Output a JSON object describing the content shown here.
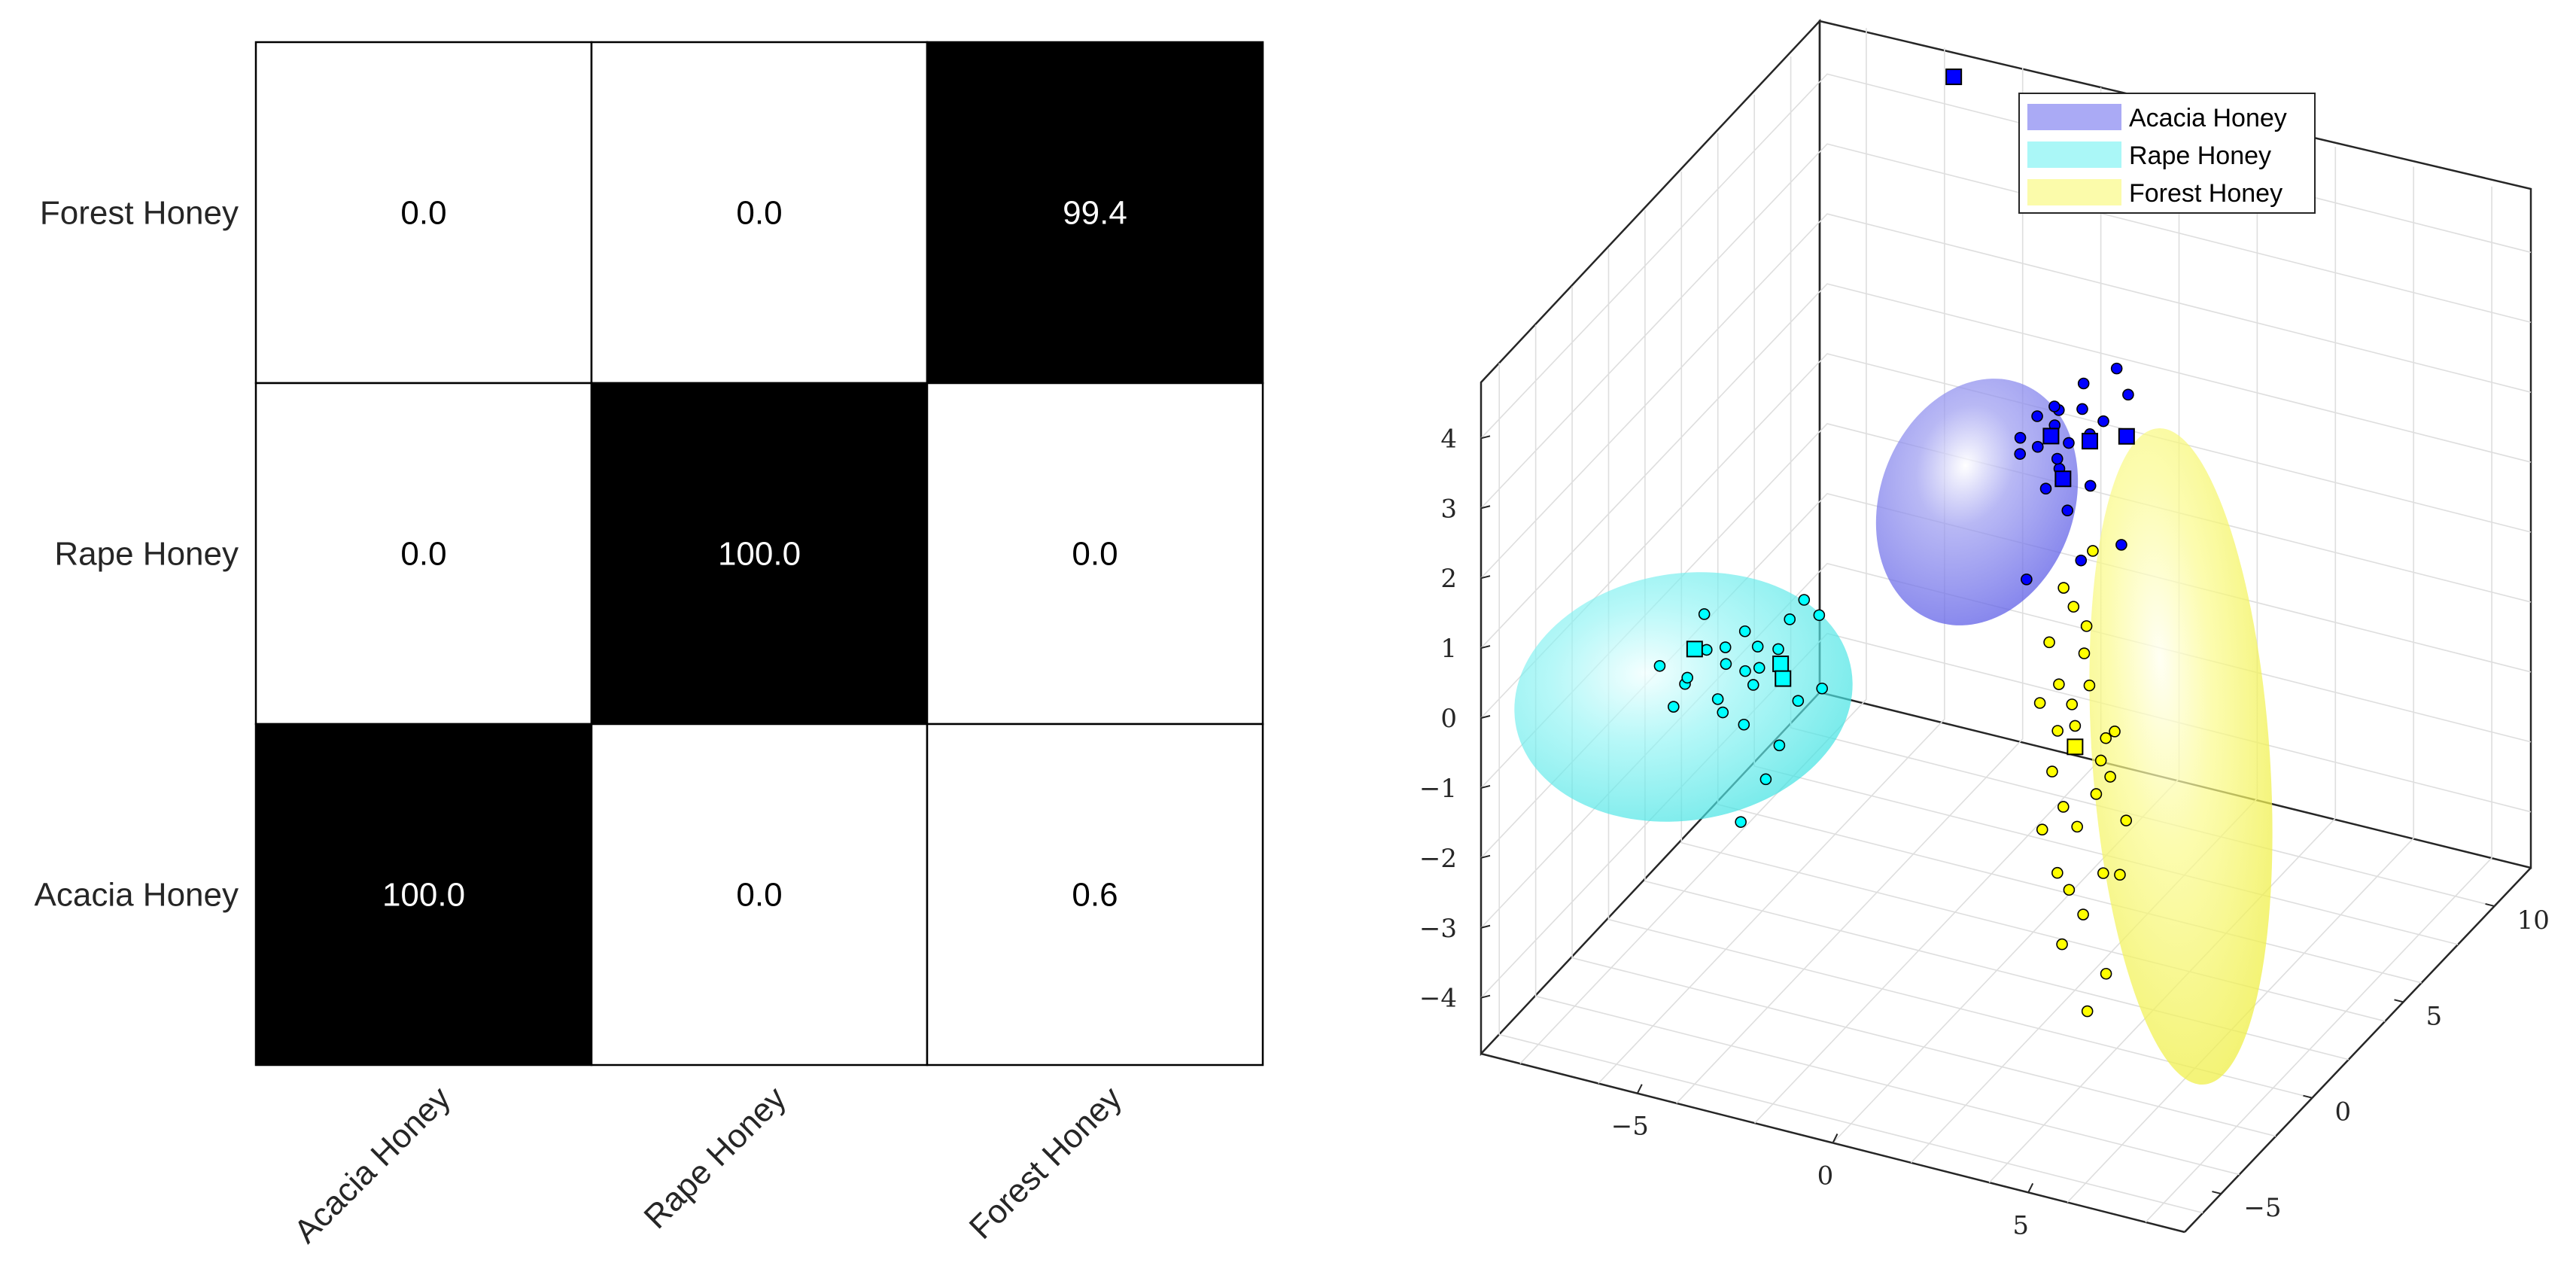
{
  "chart_data": [
    {
      "type": "heatmap",
      "title": "",
      "row_labels": [
        "Forest Honey",
        "Rape Honey",
        "Acacia Honey"
      ],
      "col_labels": [
        "Acacia Honey",
        "Rape Honey",
        "Forest Honey"
      ],
      "values": [
        [
          0.0,
          0.0,
          99.4
        ],
        [
          0.0,
          100.0,
          0.0
        ],
        [
          100.0,
          0.0,
          0.6
        ]
      ],
      "value_labels": [
        [
          "0.0",
          "0.0",
          "99.4"
        ],
        [
          "0.0",
          "100.0",
          "0.0"
        ],
        [
          "100.0",
          "0.0",
          "0.6"
        ]
      ],
      "colormap": [
        "#ffffff",
        "#000000"
      ],
      "grid": true
    },
    {
      "type": "scatter",
      "subtype": "3d-scatter-with-confidence-ellipsoids",
      "title": "",
      "legend_position": "top-right",
      "legend": [
        "Acacia Honey",
        "Rape Honey",
        "Forest Honey"
      ],
      "x_ticks": [
        "−5",
        "0",
        "5"
      ],
      "y_ticks": [
        "−5",
        "0",
        "5",
        "10"
      ],
      "z_ticks": [
        "4",
        "3",
        "2",
        "1",
        "0",
        "−1",
        "−2",
        "−3",
        "−4"
      ],
      "xlim": [
        -9,
        9
      ],
      "ylim": [
        -7,
        12
      ],
      "zlim": [
        -4.8,
        4.8
      ],
      "grid": true,
      "series": [
        {
          "name": "Acacia Honey",
          "color": "#0000ff",
          "center": [
            1.5,
            2.5,
            2.2
          ],
          "points": [
            [
              1.0,
              2.1,
              2.8
            ],
            [
              1.4,
              2.4,
              3.3
            ],
            [
              2.1,
              2.6,
              3.0
            ],
            [
              0.6,
              2.0,
              2.9
            ],
            [
              1.8,
              2.9,
              3.6
            ],
            [
              2.3,
              2.2,
              2.4
            ],
            [
              1.1,
              2.8,
              3.2
            ],
            [
              1.6,
              2.0,
              2.6
            ],
            [
              0.8,
              2.5,
              3.1
            ],
            [
              2.0,
              2.4,
              3.4
            ],
            [
              1.3,
              1.9,
              2.3
            ],
            [
              2.6,
              3.0,
              3.9
            ],
            [
              1.7,
              2.3,
              2.9
            ],
            [
              0.5,
              2.2,
              2.6
            ],
            [
              2.4,
              2.7,
              3.2
            ],
            [
              1.2,
              2.6,
              3.0
            ],
            [
              1.9,
              1.8,
              2.1
            ],
            [
              2.8,
              3.2,
              3.5
            ],
            [
              1.5,
              2.1,
              2.7
            ],
            [
              0.9,
              1.7,
              1.0
            ],
            [
              3.0,
              2.4,
              1.6
            ],
            [
              2.2,
              1.9,
              1.4
            ]
          ],
          "squares": [
            [
              -2.5,
              5.0,
              6.8
            ],
            [
              1.2,
              2.4,
              2.9
            ],
            [
              1.6,
              2.2,
              2.4
            ],
            [
              2.1,
              2.6,
              2.9
            ],
            [
              2.9,
              2.9,
              3.0
            ]
          ]
        },
        {
          "name": "Rape Honey",
          "color": "#00ffff",
          "center": [
            -4.5,
            -3.0,
            0.0
          ],
          "points": [
            [
              -5.0,
              -3.2,
              0.5
            ],
            [
              -4.2,
              -2.8,
              0.2
            ],
            [
              -3.6,
              -3.4,
              0.8
            ],
            [
              -5.6,
              -3.1,
              -0.1
            ],
            [
              -4.8,
              -2.6,
              0.4
            ],
            [
              -3.9,
              -3.0,
              0.1
            ],
            [
              -4.4,
              -3.6,
              -0.2
            ],
            [
              -5.2,
              -2.9,
              0.9
            ],
            [
              -3.4,
              -2.7,
              0.6
            ],
            [
              -4.0,
              -3.3,
              -0.4
            ],
            [
              -4.6,
              -3.0,
              0.3
            ],
            [
              -5.4,
              -3.4,
              0.1
            ],
            [
              -3.2,
              -2.5,
              1.0
            ],
            [
              -4.9,
              -2.8,
              -0.3
            ],
            [
              -3.7,
              -3.1,
              0.4
            ],
            [
              -5.8,
              -3.3,
              -0.4
            ],
            [
              -4.3,
              -2.6,
              0.7
            ],
            [
              -2.8,
              -2.9,
              0.0
            ],
            [
              -3.0,
              -3.5,
              -0.5
            ],
            [
              -6.2,
              -3.2,
              0.1
            ],
            [
              -2.4,
              -2.6,
              1.2
            ],
            [
              -2.6,
              -3.0,
              1.5
            ],
            [
              -2.0,
              -3.3,
              0.4
            ],
            [
              -3.3,
              -3.6,
              -1.0
            ],
            [
              -3.8,
              -3.9,
              -1.6
            ]
          ],
          "squares": [
            [
              -5.4,
              -3.0,
              0.4
            ],
            [
              -3.2,
              -3.0,
              0.5
            ],
            [
              -3.0,
              -3.3,
              0.4
            ]
          ]
        },
        {
          "name": "Forest Honey",
          "color": "#ffff00",
          "center": [
            3.5,
            -1.0,
            -0.5
          ],
          "points": [
            [
              3.2,
              -1.2,
              2.0
            ],
            [
              3.6,
              -0.8,
              1.4
            ],
            [
              4.0,
              -1.5,
              0.8
            ],
            [
              2.8,
              -0.6,
              0.4
            ],
            [
              3.4,
              -1.0,
              0.0
            ],
            [
              4.2,
              -1.3,
              -0.3
            ],
            [
              3.0,
              -1.4,
              -0.6
            ],
            [
              3.8,
              -0.7,
              -1.0
            ],
            [
              3.5,
              -1.1,
              -1.4
            ],
            [
              4.4,
              -1.6,
              -1.8
            ],
            [
              2.9,
              -0.9,
              -2.2
            ],
            [
              3.7,
              -1.2,
              -2.6
            ],
            [
              3.3,
              -1.5,
              -3.0
            ],
            [
              4.1,
              -0.8,
              -3.5
            ],
            [
              3.1,
              -1.0,
              -1.2
            ],
            [
              4.6,
              -1.4,
              0.2
            ],
            [
              2.6,
              -0.7,
              1.0
            ],
            [
              3.9,
              -1.1,
              2.6
            ],
            [
              3.4,
              -0.5,
              0.9
            ],
            [
              4.3,
              -1.0,
              -0.6
            ],
            [
              2.7,
              -1.3,
              -1.5
            ],
            [
              3.6,
              -1.6,
              0.5
            ],
            [
              4.8,
              -1.2,
              -1.1
            ],
            [
              3.2,
              -0.9,
              -2.4
            ],
            [
              3.9,
              -1.4,
              -3.9
            ],
            [
              2.5,
              -1.0,
              0.2
            ],
            [
              4.0,
              -0.6,
              -0.2
            ],
            [
              3.5,
              -1.3,
              1.8
            ],
            [
              3.0,
              -1.1,
              -0.1
            ],
            [
              4.5,
              -0.9,
              -2.0
            ]
          ],
          "squares": [
            [
              3.4,
              -1.0,
              -0.3
            ]
          ]
        }
      ]
    }
  ]
}
